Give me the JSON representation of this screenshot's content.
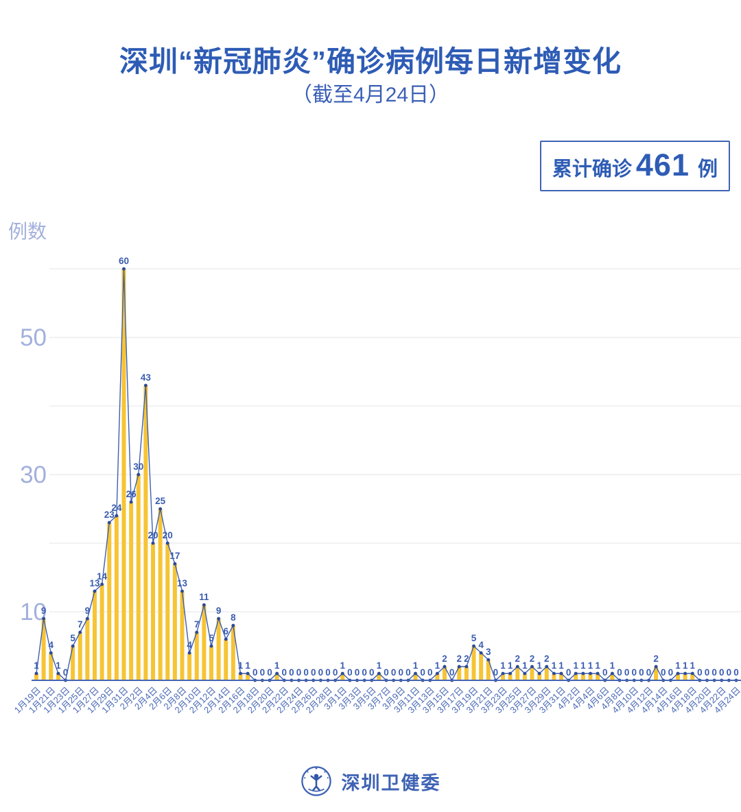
{
  "title": "深圳“新冠肺炎”确诊病例每日新增变化",
  "subtitle": "（截至4月24日）",
  "badge": {
    "prefix": "累计确诊",
    "value": "461",
    "suffix": "例"
  },
  "footer": {
    "brand": "深圳卫健委",
    "logo_icon": "shenzhen-health-commission-emblem"
  },
  "colors": {
    "title": "#2E5CB5",
    "badge_border": "#3F63B5",
    "bar": "#F6C434",
    "line": "#3D5FB0",
    "dot": "#2B4A9B",
    "value_label": "#3A5CB0",
    "x_label": "#4A69B5",
    "y_label": "#A3B0DC",
    "gridline": "#EDEDF1",
    "axis": "#4664B0",
    "background": "#FFFFFF"
  },
  "chart_data": {
    "type": "bar-line",
    "title": "",
    "xlabel": "",
    "ylabel": "例数",
    "ylim": [
      0,
      62
    ],
    "grid": true,
    "legend": "none",
    "y_gridlines": [
      10,
      20,
      30,
      40,
      50,
      60
    ],
    "y_ticks_labeled": [
      10,
      30,
      50
    ],
    "x_tick_step": 2,
    "x": [
      "1月19日",
      "1月20日",
      "1月21日",
      "1月22日",
      "1月23日",
      "1月24日",
      "1月25日",
      "1月26日",
      "1月27日",
      "1月28日",
      "1月29日",
      "1月30日",
      "1月31日",
      "2月1日",
      "2月2日",
      "2月3日",
      "2月4日",
      "2月5日",
      "2月6日",
      "2月7日",
      "2月8日",
      "2月9日",
      "2月10日",
      "2月11日",
      "2月12日",
      "2月13日",
      "2月14日",
      "2月15日",
      "2月16日",
      "2月17日",
      "2月18日",
      "2月19日",
      "2月20日",
      "2月21日",
      "2月22日",
      "2月23日",
      "2月24日",
      "2月25日",
      "2月26日",
      "2月27日",
      "2月28日",
      "2月29日",
      "3月1日",
      "3月2日",
      "3月3日",
      "3月4日",
      "3月5日",
      "3月6日",
      "3月7日",
      "3月8日",
      "3月9日",
      "3月10日",
      "3月11日",
      "3月12日",
      "3月13日",
      "3月14日",
      "3月15日",
      "3月16日",
      "3月17日",
      "3月18日",
      "3月19日",
      "3月20日",
      "3月21日",
      "3月22日",
      "3月23日",
      "3月24日",
      "3月25日",
      "3月26日",
      "3月27日",
      "3月28日",
      "3月29日",
      "3月30日",
      "3月31日",
      "4月1日",
      "4月2日",
      "4月3日",
      "4月4日",
      "4月5日",
      "4月6日",
      "4月7日",
      "4月8日",
      "4月9日",
      "4月10日",
      "4月11日",
      "4月12日",
      "4月13日",
      "4月14日",
      "4月15日",
      "4月16日",
      "4月17日",
      "4月18日",
      "4月19日",
      "4月20日",
      "4月21日",
      "4月22日",
      "4月23日",
      "4月24日"
    ],
    "values": [
      1,
      9,
      4,
      1,
      0,
      5,
      7,
      9,
      13,
      14,
      23,
      24,
      60,
      26,
      30,
      43,
      20,
      25,
      20,
      17,
      13,
      4,
      7,
      11,
      5,
      9,
      6,
      8,
      1,
      1,
      0,
      0,
      0,
      1,
      0,
      0,
      0,
      0,
      0,
      0,
      0,
      0,
      1,
      0,
      0,
      0,
      0,
      1,
      0,
      0,
      0,
      0,
      1,
      0,
      0,
      1,
      2,
      0,
      2,
      2,
      5,
      4,
      3,
      0,
      1,
      1,
      2,
      1,
      2,
      1,
      2,
      1,
      1,
      0,
      1,
      1,
      1,
      1,
      0,
      1,
      0,
      0,
      0,
      0,
      0,
      2,
      0,
      0,
      1,
      1,
      1,
      0,
      0,
      0,
      0,
      0,
      0
    ],
    "values_total": 461
  }
}
